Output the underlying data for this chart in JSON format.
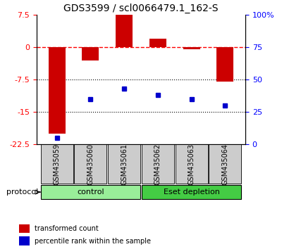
{
  "title": "GDS3599 / scl0066479.1_162-S",
  "samples": [
    "GSM435059",
    "GSM435060",
    "GSM435061",
    "GSM435062",
    "GSM435063",
    "GSM435064"
  ],
  "red_values": [
    -20.0,
    -3.0,
    7.5,
    2.0,
    -0.5,
    -8.0
  ],
  "blue_values": [
    5.0,
    35.0,
    43.0,
    38.0,
    35.0,
    30.0
  ],
  "ylim_left": [
    -22.5,
    7.5
  ],
  "ylim_right": [
    0,
    100
  ],
  "yticks_left": [
    7.5,
    0,
    -7.5,
    -15,
    -22.5
  ],
  "yticks_right": [
    100,
    75,
    50,
    25,
    0
  ],
  "ytick_labels_right": [
    "100%",
    "75",
    "50",
    "25",
    "0"
  ],
  "hline_y": 0,
  "dotted_lines": [
    -7.5,
    -15
  ],
  "bar_color": "#cc0000",
  "dot_color": "#0000cc",
  "bar_width": 0.5,
  "protocol_groups": [
    {
      "label": "control",
      "start": 0,
      "end": 3,
      "color": "#99ee99"
    },
    {
      "label": "Eset depletion",
      "start": 3,
      "end": 6,
      "color": "#44cc44"
    }
  ],
  "protocol_label": "protocol",
  "legend_red": "transformed count",
  "legend_blue": "percentile rank within the sample",
  "title_fontsize": 10,
  "tick_fontsize": 8,
  "sample_fontsize": 7,
  "legend_fontsize": 7,
  "group_fontsize": 8
}
